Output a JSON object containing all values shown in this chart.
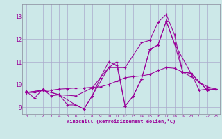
{
  "xlabel": "Windchill (Refroidissement éolien,°C)",
  "background_color": "#cce8e8",
  "grid_color": "#aaaacc",
  "line_color": "#990099",
  "spine_color": "#888899",
  "xlim": [
    -0.5,
    23.5
  ],
  "ylim": [
    8.7,
    13.55
  ],
  "yticks": [
    9,
    10,
    11,
    12,
    13
  ],
  "xticks": [
    0,
    1,
    2,
    3,
    4,
    5,
    6,
    7,
    8,
    9,
    10,
    11,
    12,
    13,
    14,
    15,
    16,
    17,
    18,
    19,
    20,
    21,
    22,
    23
  ],
  "series": [
    {
      "x": [
        0,
        1,
        2,
        3,
        4,
        5,
        6,
        7,
        8,
        9,
        10,
        11,
        12,
        13,
        14,
        15,
        16,
        17,
        18,
        19,
        20,
        21,
        22,
        23
      ],
      "y": [
        9.7,
        9.4,
        9.8,
        9.5,
        9.55,
        9.1,
        9.1,
        8.92,
        9.5,
        10.3,
        11.0,
        10.85,
        9.05,
        9.5,
        10.25,
        11.55,
        11.75,
        12.8,
        11.8,
        10.55,
        10.5,
        9.75,
        9.8,
        9.8
      ]
    },
    {
      "x": [
        0,
        1,
        2,
        3,
        4,
        5,
        6,
        7,
        8,
        9,
        10,
        11,
        12,
        13,
        14,
        15,
        16,
        17,
        18,
        19,
        20,
        21,
        22,
        23
      ],
      "y": [
        9.65,
        9.65,
        9.75,
        9.75,
        9.8,
        9.82,
        9.85,
        9.85,
        9.88,
        9.9,
        10.0,
        10.15,
        10.3,
        10.35,
        10.38,
        10.45,
        10.62,
        10.75,
        10.72,
        10.55,
        10.35,
        10.1,
        9.9,
        9.8
      ]
    },
    {
      "x": [
        0,
        2,
        4,
        6,
        8,
        10,
        12,
        14,
        15,
        16,
        17,
        18,
        19,
        20,
        22,
        23
      ],
      "y": [
        9.65,
        9.75,
        9.55,
        9.5,
        9.85,
        10.75,
        10.75,
        11.85,
        11.95,
        12.75,
        13.1,
        12.2,
        10.55,
        10.5,
        9.75,
        9.8
      ]
    },
    {
      "x": [
        0,
        2,
        4,
        6,
        7,
        8,
        10,
        11,
        12,
        13,
        14,
        15,
        16,
        17,
        18,
        20,
        22,
        23
      ],
      "y": [
        9.65,
        9.75,
        9.55,
        9.1,
        8.92,
        9.5,
        10.75,
        11.0,
        9.05,
        9.5,
        10.25,
        11.55,
        11.75,
        12.8,
        11.8,
        10.5,
        9.75,
        9.8
      ]
    }
  ]
}
